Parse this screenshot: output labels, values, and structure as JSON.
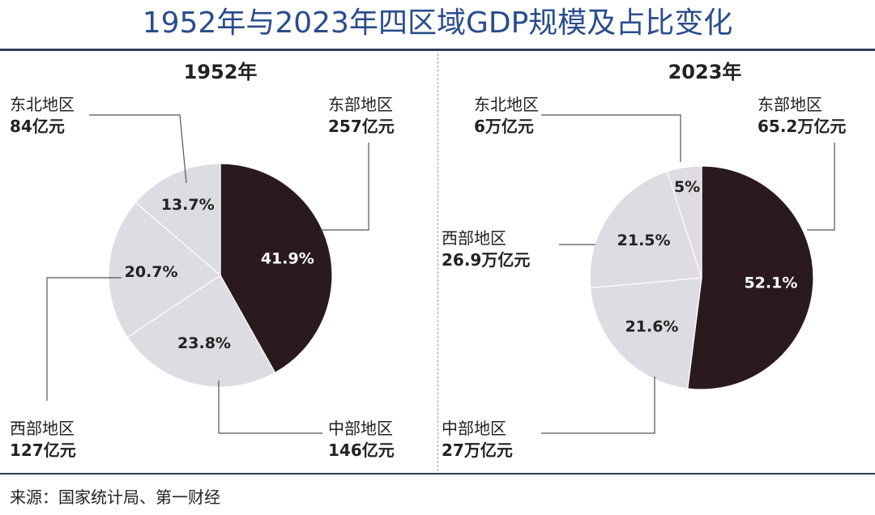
{
  "title": "1952年与2023年四区域GDP规模及占比变化",
  "source": "来源：国家统计局、第一财经",
  "colors": {
    "east": "#2b1a1d",
    "other": "#dcdce2",
    "title": "#2b4c8c"
  },
  "chart_data": [
    {
      "type": "pie",
      "title": "1952年",
      "slices": [
        {
          "region": "东部地区",
          "value": "257亿元",
          "percent": 41.9,
          "percent_label": "41.9%"
        },
        {
          "region": "中部地区",
          "value": "146亿元",
          "percent": 23.8,
          "percent_label": "23.8%"
        },
        {
          "region": "西部地区",
          "value": "127亿元",
          "percent": 20.7,
          "percent_label": "20.7%"
        },
        {
          "region": "东北地区",
          "value": "84亿元",
          "percent": 13.7,
          "percent_label": "13.7%"
        }
      ]
    },
    {
      "type": "pie",
      "title": "2023年",
      "slices": [
        {
          "region": "东部地区",
          "value": "65.2万亿元",
          "percent": 52.1,
          "percent_label": "52.1%"
        },
        {
          "region": "中部地区",
          "value": "27万亿元",
          "percent": 21.6,
          "percent_label": "21.6%"
        },
        {
          "region": "西部地区",
          "value": "26.9万亿元",
          "percent": 21.5,
          "percent_label": "21.5%"
        },
        {
          "region": "东北地区",
          "value": "6万亿元",
          "percent": 5,
          "percent_label": "5%"
        }
      ]
    }
  ]
}
